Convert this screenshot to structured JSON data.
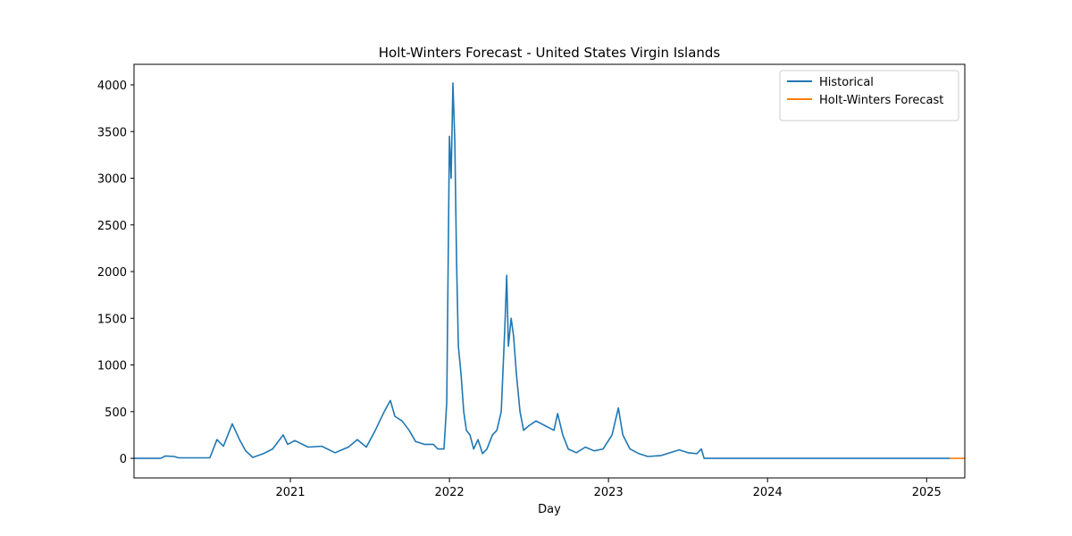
{
  "chart_data": {
    "type": "line",
    "title": "Holt-Winters Forecast - United States Virgin Islands",
    "x_label": "Day",
    "xlim": [
      2020.017,
      2025.24
    ],
    "xticks": [
      2021,
      2022,
      2023,
      2024,
      2025
    ],
    "ylim": [
      -210,
      4220
    ],
    "yticks": [
      0,
      500,
      1000,
      1500,
      2000,
      2500,
      3000,
      3500,
      4000
    ],
    "legend": "upper right",
    "grid": false,
    "series": [
      {
        "name": "Historical",
        "color": "#1f77b4",
        "x": [
          2020.017,
          2020.185,
          2020.213,
          2020.27,
          2020.298,
          2020.494,
          2020.539,
          2020.579,
          2020.635,
          2020.68,
          2020.719,
          2020.764,
          2020.831,
          2020.888,
          2020.955,
          2020.983,
          2021.028,
          2021.112,
          2021.197,
          2021.281,
          2021.365,
          2021.421,
          2021.478,
          2021.534,
          2021.59,
          2021.629,
          2021.657,
          2021.702,
          2021.747,
          2021.787,
          2021.843,
          2021.899,
          2021.927,
          2021.966,
          2021.983,
          2022.0,
          2022.011,
          2022.022,
          2022.034,
          2022.045,
          2022.056,
          2022.073,
          2022.09,
          2022.107,
          2022.129,
          2022.152,
          2022.18,
          2022.208,
          2022.236,
          2022.27,
          2022.298,
          2022.326,
          2022.348,
          2022.36,
          2022.371,
          2022.388,
          2022.404,
          2022.421,
          2022.444,
          2022.466,
          2022.5,
          2022.545,
          2022.601,
          2022.657,
          2022.68,
          2022.713,
          2022.747,
          2022.798,
          2022.854,
          2022.91,
          2022.966,
          2023.022,
          2023.062,
          2023.09,
          2023.135,
          2023.191,
          2023.247,
          2023.331,
          2023.444,
          2023.5,
          2023.556,
          2023.584,
          2023.601,
          2025.146
        ],
        "values": [
          0,
          0,
          25,
          20,
          5,
          5,
          200,
          130,
          370,
          200,
          80,
          10,
          50,
          100,
          250,
          150,
          190,
          120,
          130,
          60,
          120,
          200,
          120,
          300,
          500,
          620,
          450,
          400,
          300,
          180,
          150,
          150,
          100,
          100,
          600,
          3450,
          3000,
          4020,
          3400,
          2100,
          1200,
          900,
          500,
          300,
          250,
          100,
          200,
          50,
          100,
          250,
          300,
          500,
          1400,
          1960,
          1200,
          1500,
          1300,
          900,
          500,
          300,
          350,
          400,
          350,
          300,
          480,
          250,
          100,
          60,
          120,
          80,
          100,
          250,
          540,
          250,
          100,
          50,
          20,
          30,
          90,
          60,
          50,
          100,
          0,
          0
        ]
      },
      {
        "name": "Holt-Winters Forecast",
        "color": "#ff7f0e",
        "x": [
          2025.146,
          2025.24
        ],
        "values": [
          0,
          0
        ]
      }
    ]
  }
}
